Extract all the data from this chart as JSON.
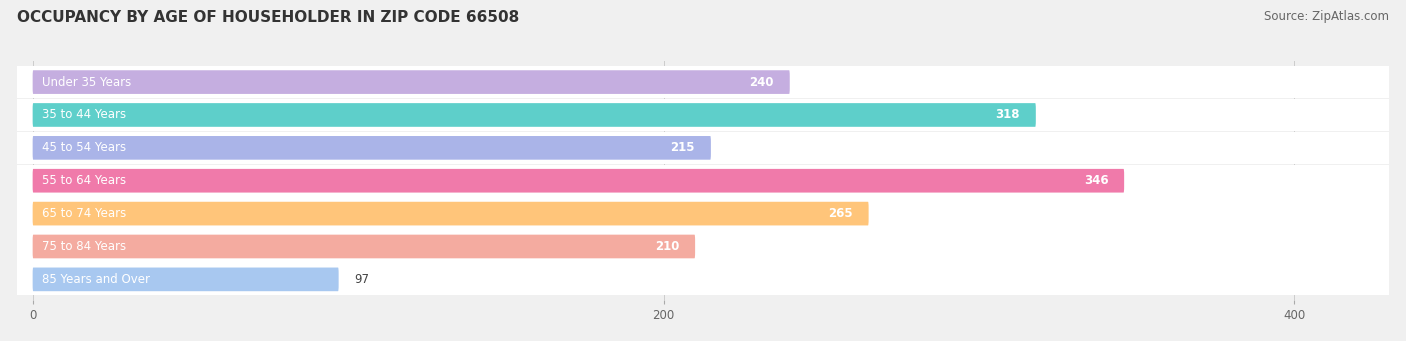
{
  "title": "OCCUPANCY BY AGE OF HOUSEHOLDER IN ZIP CODE 66508",
  "source": "Source: ZipAtlas.com",
  "categories": [
    "Under 35 Years",
    "35 to 44 Years",
    "45 to 54 Years",
    "55 to 64 Years",
    "65 to 74 Years",
    "75 to 84 Years",
    "85 Years and Over"
  ],
  "values": [
    240,
    318,
    215,
    346,
    265,
    210,
    97
  ],
  "bar_colors": [
    "#c5aee0",
    "#5ecfca",
    "#aab4e8",
    "#f07aaa",
    "#ffc57a",
    "#f4aba0",
    "#a8c8f0"
  ],
  "xlim": [
    -5,
    430
  ],
  "xticks": [
    0,
    200,
    400
  ],
  "title_fontsize": 11,
  "title_color": "#333333",
  "source_fontsize": 8.5,
  "source_color": "#666666",
  "label_fontsize": 8.5,
  "value_fontsize": 8.5,
  "background_color": "#f0f0f0",
  "row_bg_color": "#ffffff"
}
